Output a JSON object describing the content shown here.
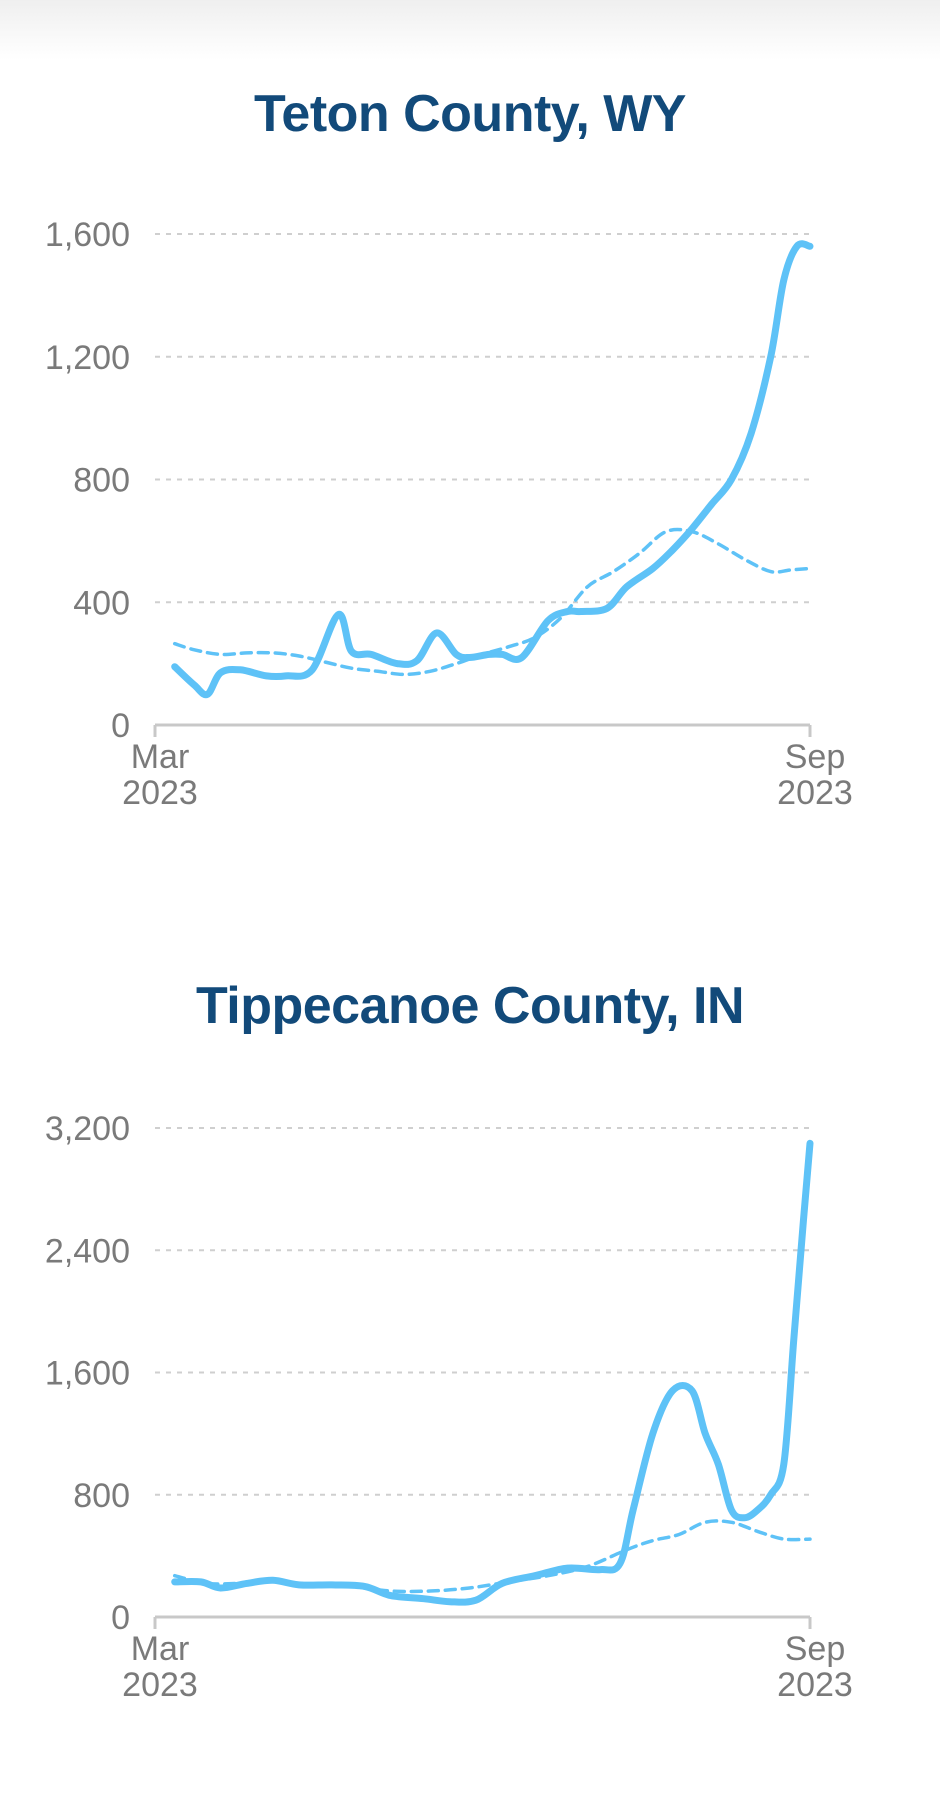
{
  "colors": {
    "title": "#124a7a",
    "line": "#5ec2f7",
    "grid": "#cfcfcf",
    "axis": "#c8c8c8",
    "tick_text": "#7a7a7a"
  },
  "chart_data": [
    {
      "type": "line",
      "title": "Teton County, WY",
      "xlabel": "",
      "ylabel": "",
      "x_range": [
        0,
        1
      ],
      "ylim": [
        0,
        1600
      ],
      "y_ticks": [
        "0",
        "400",
        "800",
        "1,200",
        "1,600"
      ],
      "y_tick_values": [
        0,
        400,
        800,
        1200,
        1600
      ],
      "x_ticks": [
        {
          "label": [
            "Mar",
            "2023"
          ],
          "x": 0
        },
        {
          "label": [
            "Sep",
            "2023"
          ],
          "x": 1
        }
      ],
      "grid": true,
      "series": [
        {
          "style": "solid",
          "x": [
            0.03,
            0.06,
            0.08,
            0.1,
            0.13,
            0.17,
            0.2,
            0.24,
            0.28,
            0.3,
            0.33,
            0.37,
            0.4,
            0.43,
            0.46,
            0.48,
            0.51,
            0.53,
            0.56,
            0.6,
            0.63,
            0.65,
            0.69,
            0.72,
            0.76,
            0.79,
            0.82,
            0.85,
            0.88,
            0.91,
            0.94,
            0.96,
            0.98,
            1.0
          ],
          "y": [
            190,
            130,
            100,
            170,
            180,
            160,
            160,
            180,
            360,
            240,
            230,
            200,
            210,
            300,
            230,
            220,
            230,
            230,
            220,
            340,
            370,
            370,
            380,
            450,
            510,
            570,
            640,
            720,
            800,
            950,
            1200,
            1450,
            1560,
            1560
          ]
        },
        {
          "style": "dashed",
          "x": [
            0.03,
            0.06,
            0.1,
            0.14,
            0.18,
            0.22,
            0.26,
            0.3,
            0.34,
            0.38,
            0.42,
            0.46,
            0.5,
            0.54,
            0.58,
            0.62,
            0.66,
            0.7,
            0.74,
            0.78,
            0.82,
            0.86,
            0.9,
            0.94,
            0.97,
            1.0
          ],
          "y": [
            265,
            245,
            230,
            235,
            235,
            225,
            205,
            185,
            175,
            165,
            175,
            200,
            230,
            255,
            285,
            350,
            450,
            500,
            560,
            630,
            630,
            590,
            540,
            500,
            505,
            510
          ]
        }
      ]
    },
    {
      "type": "line",
      "title": "Tippecanoe County, IN",
      "xlabel": "",
      "ylabel": "",
      "x_range": [
        0,
        1
      ],
      "ylim": [
        0,
        3200
      ],
      "y_ticks": [
        "0",
        "800",
        "1,600",
        "2,400",
        "3,200"
      ],
      "y_tick_values": [
        0,
        800,
        1600,
        2400,
        3200
      ],
      "x_ticks": [
        {
          "label": [
            "Mar",
            "2023"
          ],
          "x": 0
        },
        {
          "label": [
            "Sep",
            "2023"
          ],
          "x": 1
        }
      ],
      "grid": true,
      "series": [
        {
          "style": "solid",
          "x": [
            0.03,
            0.07,
            0.1,
            0.14,
            0.18,
            0.22,
            0.27,
            0.32,
            0.36,
            0.41,
            0.45,
            0.49,
            0.53,
            0.58,
            0.63,
            0.68,
            0.71,
            0.73,
            0.76,
            0.79,
            0.82,
            0.84,
            0.86,
            0.88,
            0.9,
            0.92,
            0.94,
            0.96,
            0.975,
            0.99,
            1.0
          ],
          "y": [
            230,
            230,
            190,
            220,
            240,
            210,
            210,
            200,
            140,
            120,
            100,
            110,
            220,
            270,
            320,
            310,
            350,
            700,
            1200,
            1480,
            1480,
            1200,
            1000,
            700,
            650,
            700,
            800,
            1000,
            1800,
            2600,
            3100
          ]
        },
        {
          "style": "dashed",
          "x": [
            0.03,
            0.08,
            0.13,
            0.18,
            0.24,
            0.3,
            0.36,
            0.42,
            0.48,
            0.54,
            0.6,
            0.66,
            0.72,
            0.76,
            0.8,
            0.84,
            0.88,
            0.92,
            0.96,
            1.0
          ],
          "y": [
            270,
            220,
            220,
            230,
            215,
            200,
            170,
            170,
            190,
            230,
            270,
            330,
            440,
            500,
            540,
            620,
            620,
            560,
            510,
            510
          ]
        }
      ]
    }
  ]
}
